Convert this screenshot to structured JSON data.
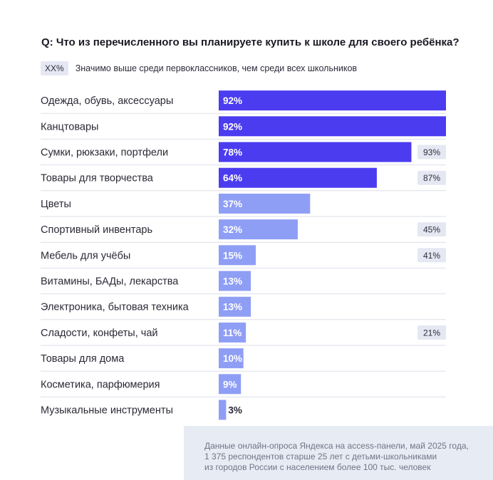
{
  "question": "Q: Что из перечисленного вы планируете купить к школе для своего ребёнка?",
  "legend": {
    "badge": "XX%",
    "text": "Значимо выше среди первоклассников, чем среди всех школьников"
  },
  "colors": {
    "dark_bar": "#4b3cf0",
    "light_bar": "#8f9ef5",
    "badge_bg": "#e5e8f3",
    "divider": "#dcdfe8"
  },
  "chart_data": {
    "type": "bar",
    "orientation": "horizontal",
    "xlim": [
      0,
      100
    ],
    "categories": [
      "Одежда, обувь, аксессуары",
      "Канцтовары",
      "Сумки, рюкзаки, портфели",
      "Товары для творчества",
      "Цветы",
      "Спортивный инвентарь",
      "Мебель для учёбы",
      "Витамины, БАДы, лекарства",
      "Электроника, бытовая техника",
      "Сладости, конфеты, чай",
      "Товары для дома",
      "Косметика, парфюмерия",
      "Музыкальные инструменты"
    ],
    "values": [
      92,
      92,
      78,
      64,
      37,
      32,
      15,
      13,
      13,
      11,
      10,
      9,
      3
    ],
    "value_labels": [
      "92%",
      "92%",
      "78%",
      "64%",
      "37%",
      "32%",
      "15%",
      "13%",
      "13%",
      "11%",
      "10%",
      "9%",
      "3%"
    ],
    "first_graders": [
      "",
      "",
      "93%",
      "87%",
      "",
      "45%",
      "41%",
      "",
      "",
      "21%",
      "",
      "",
      ""
    ],
    "highlighted": [
      true,
      true,
      true,
      true,
      false,
      false,
      false,
      false,
      false,
      false,
      false,
      false,
      false
    ]
  },
  "footnote": {
    "lines": [
      "Данные онлайн-опроса Яндекса на access-панели, май 2025 года,",
      "1 375 респондентов старше 25 лет с детьми-школьниками",
      "из городов России с населением более 100 тыс. человек"
    ]
  }
}
